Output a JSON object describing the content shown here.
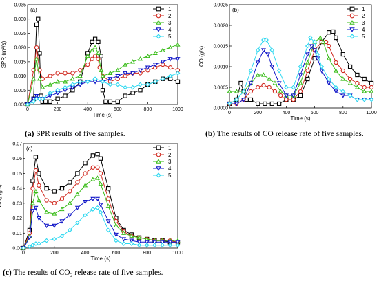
{
  "colors": {
    "s1": "#000000",
    "s2": "#d0281e",
    "s3": "#3bbd1b",
    "s4": "#1016c8",
    "s5": "#2ed8f0"
  },
  "markers": [
    "square",
    "circle",
    "triangle-up",
    "triangle-down",
    "diamond"
  ],
  "captions": {
    "a": {
      "tag": "(a)",
      "text": "SPR results of five samples."
    },
    "b": {
      "tag": "(b)",
      "text": "The results of CO release rate of five samples."
    },
    "c": {
      "tag": "(c)",
      "text": "The results of CO₂ release rate of five samples."
    }
  },
  "chart_data": [
    {
      "id": "a",
      "type": "line",
      "panel_label": "(a)",
      "xlabel": "Time (s)",
      "ylabel": "SPR (m²/s)",
      "xlim": [
        0,
        1000
      ],
      "ylim": [
        0,
        0.035
      ],
      "xticks": [
        0,
        200,
        400,
        600,
        800,
        1000
      ],
      "yticks": [
        0.0,
        0.005,
        0.01,
        0.015,
        0.02,
        0.025,
        0.03,
        0.035
      ],
      "ytick_labels": [
        "0.000",
        "0.005",
        "0.010",
        "0.015",
        "0.020",
        "0.025",
        "0.030",
        "0.035"
      ],
      "legend_position": "top-right",
      "series": [
        {
          "name": "1",
          "x": [
            0,
            40,
            60,
            70,
            80,
            90,
            100,
            120,
            150,
            200,
            250,
            300,
            350,
            400,
            430,
            450,
            470,
            490,
            500,
            520,
            550,
            600,
            650,
            700,
            750,
            800,
            850,
            900,
            950,
            1000
          ],
          "y": [
            0,
            0.002,
            0.028,
            0.03,
            0.018,
            0.003,
            0.001,
            0.001,
            0.001,
            0.002,
            0.003,
            0.005,
            0.008,
            0.018,
            0.022,
            0.023,
            0.022,
            0.017,
            0.005,
            0.001,
            0.001,
            0.001,
            0.003,
            0.004,
            0.005,
            0.007,
            0.008,
            0.009,
            0.009,
            0.008
          ]
        },
        {
          "name": "2",
          "x": [
            0,
            40,
            60,
            80,
            100,
            150,
            200,
            250,
            300,
            350,
            400,
            430,
            450,
            470,
            480,
            500,
            550,
            600,
            650,
            700,
            750,
            800,
            850,
            900,
            950,
            1000
          ],
          "y": [
            0,
            0.012,
            0.02,
            0.012,
            0.009,
            0.01,
            0.011,
            0.011,
            0.011,
            0.012,
            0.014,
            0.016,
            0.017,
            0.016,
            0.013,
            0.01,
            0.008,
            0.009,
            0.01,
            0.011,
            0.011,
            0.012,
            0.013,
            0.014,
            0.013,
            0.012
          ]
        },
        {
          "name": "3",
          "x": [
            0,
            40,
            60,
            80,
            100,
            150,
            200,
            250,
            300,
            350,
            400,
            430,
            450,
            470,
            490,
            500,
            550,
            600,
            650,
            700,
            750,
            800,
            850,
            900,
            950,
            1000
          ],
          "y": [
            0,
            0.009,
            0.016,
            0.009,
            0.006,
            0.007,
            0.008,
            0.008,
            0.009,
            0.01,
            0.017,
            0.019,
            0.02,
            0.018,
            0.012,
            0.01,
            0.011,
            0.012,
            0.014,
            0.015,
            0.016,
            0.017,
            0.018,
            0.019,
            0.02,
            0.021
          ]
        },
        {
          "name": "4",
          "x": [
            0,
            40,
            60,
            80,
            100,
            150,
            200,
            250,
            300,
            350,
            400,
            450,
            500,
            550,
            600,
            650,
            700,
            750,
            800,
            850,
            900,
            950,
            1000
          ],
          "y": [
            0,
            0.002,
            0.003,
            0.002,
            0.002,
            0.003,
            0.004,
            0.005,
            0.006,
            0.007,
            0.008,
            0.008,
            0.008,
            0.009,
            0.01,
            0.011,
            0.011,
            0.012,
            0.013,
            0.014,
            0.015,
            0.016,
            0.016
          ]
        },
        {
          "name": "5",
          "x": [
            0,
            40,
            60,
            80,
            100,
            150,
            200,
            250,
            300,
            350,
            400,
            450,
            500,
            550,
            600,
            650,
            700,
            750,
            800,
            850,
            900,
            950,
            1000
          ],
          "y": [
            0,
            0.001,
            0.002,
            0.002,
            0.002,
            0.004,
            0.005,
            0.006,
            0.007,
            0.008,
            0.008,
            0.009,
            0.008,
            0.007,
            0.007,
            0.006,
            0.006,
            0.007,
            0.007,
            0.008,
            0.009,
            0.01,
            0.011
          ]
        }
      ]
    },
    {
      "id": "b",
      "type": "line",
      "panel_label": "(b)",
      "xlabel": "Time (s)",
      "ylabel": "CO (g/s)",
      "xlim": [
        0,
        1000
      ],
      "ylim": [
        0,
        0.0025
      ],
      "xticks": [
        0,
        200,
        400,
        600,
        800,
        1000
      ],
      "yticks": [
        0.0,
        0.0005,
        0.001,
        0.0015,
        0.002,
        0.0025
      ],
      "ytick_labels": [
        "0.0000",
        "0.0005",
        "0.0010",
        "0.0015",
        "0.0020",
        "0.0025"
      ],
      "legend_position": "top-right",
      "series": [
        {
          "name": "1",
          "x": [
            0,
            50,
            80,
            100,
            120,
            150,
            200,
            250,
            300,
            350,
            400,
            450,
            500,
            550,
            600,
            650,
            700,
            730,
            750,
            800,
            850,
            900,
            950,
            1000
          ],
          "y": [
            0.0001,
            0.0002,
            0.0006,
            0.0004,
            0.0002,
            0.0002,
            0.0001,
            0.0001,
            0.0001,
            0.0001,
            0.0002,
            0.0002,
            0.0003,
            0.0007,
            0.0012,
            0.0016,
            0.00183,
            0.00185,
            0.0017,
            0.0013,
            0.001,
            0.0008,
            0.0007,
            0.0006
          ]
        },
        {
          "name": "2",
          "x": [
            0,
            50,
            100,
            150,
            200,
            240,
            280,
            320,
            360,
            400,
            450,
            500,
            550,
            600,
            650,
            680,
            700,
            750,
            800,
            850,
            900,
            950,
            1000
          ],
          "y": [
            0.0001,
            0.0001,
            0.0002,
            0.0004,
            0.0005,
            0.00055,
            0.0005,
            0.0004,
            0.0003,
            0.0002,
            0.0002,
            0.0004,
            0.0009,
            0.0014,
            0.0016,
            0.0016,
            0.0015,
            0.0011,
            0.0009,
            0.0007,
            0.0006,
            0.0005,
            0.0005
          ]
        },
        {
          "name": "3",
          "x": [
            0,
            50,
            100,
            150,
            200,
            240,
            280,
            320,
            360,
            400,
            450,
            500,
            550,
            600,
            640,
            660,
            700,
            750,
            800,
            850,
            900,
            950,
            1000
          ],
          "y": [
            0.0004,
            0.0004,
            0.0004,
            0.0006,
            0.0008,
            0.0008,
            0.0007,
            0.0006,
            0.0004,
            0.0003,
            0.0003,
            0.0006,
            0.0011,
            0.0016,
            0.0017,
            0.0016,
            0.0012,
            0.0009,
            0.0007,
            0.0006,
            0.0005,
            0.0004,
            0.0004
          ]
        },
        {
          "name": "4",
          "x": [
            0,
            50,
            100,
            150,
            200,
            240,
            270,
            300,
            350,
            400,
            450,
            500,
            550,
            580,
            600,
            620,
            650,
            700,
            750,
            800,
            850,
            900,
            950,
            1000
          ],
          "y": [
            0.0001,
            0.0001,
            0.0002,
            0.0006,
            0.0011,
            0.0014,
            0.0013,
            0.001,
            0.0006,
            0.0003,
            0.0003,
            0.0008,
            0.0013,
            0.0015,
            0.0014,
            0.0012,
            0.0009,
            0.0006,
            0.0004,
            0.0003,
            0.0003,
            0.0002,
            0.0002,
            0.0002
          ]
        },
        {
          "name": "5",
          "x": [
            0,
            50,
            100,
            150,
            200,
            240,
            260,
            300,
            350,
            400,
            450,
            500,
            550,
            570,
            600,
            620,
            650,
            700,
            750,
            800,
            850,
            900,
            950,
            1000
          ],
          "y": [
            0.0001,
            0.0002,
            0.0004,
            0.0009,
            0.0014,
            0.00165,
            0.00165,
            0.0014,
            0.0009,
            0.0005,
            0.0005,
            0.001,
            0.0015,
            0.0017,
            0.0016,
            0.0013,
            0.001,
            0.0007,
            0.0005,
            0.0004,
            0.0003,
            0.0002,
            0.0002,
            0.0002
          ]
        }
      ]
    },
    {
      "id": "c",
      "type": "line",
      "panel_label": "(c)",
      "xlabel": "Time (s)",
      "ylabel": "CO₂ (g/s)",
      "xlim": [
        0,
        1000
      ],
      "ylim": [
        0,
        0.07
      ],
      "xticks": [
        0,
        200,
        400,
        600,
        800,
        1000
      ],
      "yticks": [
        0.0,
        0.01,
        0.02,
        0.03,
        0.04,
        0.05,
        0.06,
        0.07
      ],
      "ytick_labels": [
        "0.00",
        "0.01",
        "0.02",
        "0.03",
        "0.04",
        "0.05",
        "0.06",
        "0.07"
      ],
      "legend_position": "top-right",
      "series": [
        {
          "name": "1",
          "x": [
            0,
            40,
            60,
            80,
            100,
            150,
            200,
            250,
            300,
            350,
            400,
            450,
            480,
            500,
            550,
            600,
            650,
            700,
            750,
            800,
            850,
            900,
            950,
            1000
          ],
          "y": [
            0,
            0.012,
            0.045,
            0.061,
            0.05,
            0.04,
            0.038,
            0.04,
            0.044,
            0.05,
            0.057,
            0.062,
            0.063,
            0.06,
            0.04,
            0.02,
            0.012,
            0.009,
            0.007,
            0.006,
            0.005,
            0.005,
            0.004,
            0.004
          ]
        },
        {
          "name": "2",
          "x": [
            0,
            40,
            60,
            80,
            100,
            150,
            200,
            250,
            300,
            350,
            400,
            450,
            480,
            500,
            550,
            600,
            650,
            700,
            750,
            800,
            850,
            900,
            950,
            1000
          ],
          "y": [
            0,
            0.01,
            0.04,
            0.052,
            0.042,
            0.032,
            0.03,
            0.033,
            0.038,
            0.044,
            0.05,
            0.054,
            0.054,
            0.05,
            0.033,
            0.018,
            0.011,
            0.008,
            0.007,
            0.006,
            0.005,
            0.005,
            0.005,
            0.004
          ]
        },
        {
          "name": "3",
          "x": [
            0,
            40,
            60,
            80,
            100,
            150,
            200,
            250,
            300,
            350,
            400,
            450,
            480,
            500,
            550,
            600,
            650,
            700,
            750,
            800,
            850,
            900,
            950,
            1000
          ],
          "y": [
            0,
            0.008,
            0.03,
            0.038,
            0.032,
            0.024,
            0.023,
            0.026,
            0.03,
            0.036,
            0.042,
            0.046,
            0.047,
            0.043,
            0.028,
            0.015,
            0.01,
            0.008,
            0.007,
            0.006,
            0.005,
            0.005,
            0.005,
            0.005
          ]
        },
        {
          "name": "4",
          "x": [
            0,
            40,
            60,
            80,
            100,
            150,
            200,
            250,
            300,
            350,
            400,
            450,
            480,
            500,
            550,
            600,
            650,
            700,
            750,
            800,
            850,
            900,
            950,
            1000
          ],
          "y": [
            0,
            0.007,
            0.025,
            0.027,
            0.02,
            0.015,
            0.015,
            0.018,
            0.022,
            0.027,
            0.031,
            0.033,
            0.033,
            0.029,
            0.018,
            0.009,
            0.006,
            0.005,
            0.004,
            0.004,
            0.004,
            0.004,
            0.004,
            0.004
          ]
        },
        {
          "name": "5",
          "x": [
            0,
            40,
            60,
            80,
            100,
            150,
            200,
            250,
            300,
            350,
            400,
            450,
            480,
            500,
            550,
            600,
            650,
            700,
            750,
            800,
            850,
            900,
            950,
            1000
          ],
          "y": [
            0,
            0.001,
            0.002,
            0.003,
            0.003,
            0.005,
            0.006,
            0.008,
            0.012,
            0.017,
            0.022,
            0.026,
            0.027,
            0.024,
            0.012,
            0.005,
            0.003,
            0.003,
            0.002,
            0.002,
            0.002,
            0.002,
            0.002,
            0.002
          ]
        }
      ]
    }
  ]
}
